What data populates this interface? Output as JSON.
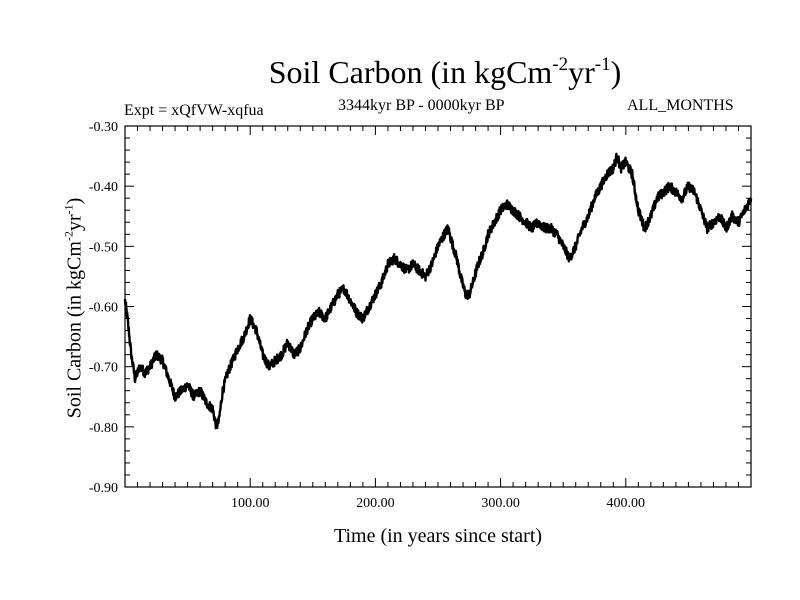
{
  "chart_data": {
    "type": "line",
    "title": {
      "main": "Soil Carbon (in kgCm",
      "exp1": "-2",
      "mid": "yr",
      "exp2": "-1",
      "end": ")"
    },
    "expt": "Expt = xQfVW-xqfua",
    "period": "3344kyr BP - 0000kyr BP",
    "months": "ALL_MONTHS",
    "ylabel": {
      "main": "Soil Carbon (in kgCm",
      "exp1": "-2",
      "mid": "yr",
      "exp2": "-1",
      "end": ")"
    },
    "xlabel": "Time (in years since start)",
    "xlim": [
      0,
      500
    ],
    "ylim": [
      -0.9,
      -0.3
    ],
    "x_ticks": [
      100,
      200,
      300,
      400
    ],
    "x_tick_labels": [
      "100.00",
      "200.00",
      "300.00",
      "400.00"
    ],
    "y_ticks": [
      -0.9,
      -0.8,
      -0.7,
      -0.6,
      -0.5,
      -0.4,
      -0.3
    ],
    "y_tick_labels": [
      "-0.90",
      "-0.80",
      "-0.70",
      "-0.60",
      "-0.50",
      "-0.40",
      "-0.30"
    ],
    "series": [
      {
        "name": "Soil Carbon",
        "color": "#000000",
        "x": [
          0,
          2,
          5,
          8,
          12,
          16,
          20,
          25,
          30,
          35,
          40,
          45,
          50,
          55,
          60,
          65,
          70,
          73,
          75,
          78,
          82,
          86,
          90,
          95,
          100,
          105,
          110,
          115,
          120,
          125,
          130,
          135,
          140,
          145,
          150,
          155,
          160,
          165,
          170,
          175,
          180,
          185,
          190,
          195,
          200,
          205,
          210,
          215,
          220,
          225,
          230,
          235,
          240,
          245,
          250,
          255,
          258,
          262,
          265,
          268,
          272,
          275,
          278,
          282,
          286,
          290,
          295,
          300,
          305,
          310,
          315,
          320,
          325,
          330,
          335,
          340,
          345,
          350,
          355,
          360,
          365,
          370,
          375,
          380,
          385,
          390,
          393,
          396,
          400,
          405,
          410,
          415,
          420,
          425,
          430,
          435,
          440,
          445,
          450,
          455,
          460,
          465,
          470,
          475,
          480,
          485,
          490,
          495,
          500
        ],
        "y": [
          -0.59,
          -0.62,
          -0.68,
          -0.72,
          -0.7,
          -0.71,
          -0.7,
          -0.68,
          -0.69,
          -0.72,
          -0.75,
          -0.74,
          -0.73,
          -0.75,
          -0.74,
          -0.76,
          -0.77,
          -0.8,
          -0.79,
          -0.74,
          -0.71,
          -0.69,
          -0.67,
          -0.65,
          -0.62,
          -0.64,
          -0.68,
          -0.7,
          -0.69,
          -0.68,
          -0.66,
          -0.68,
          -0.67,
          -0.64,
          -0.62,
          -0.61,
          -0.62,
          -0.6,
          -0.58,
          -0.57,
          -0.59,
          -0.61,
          -0.62,
          -0.6,
          -0.58,
          -0.56,
          -0.53,
          -0.52,
          -0.53,
          -0.54,
          -0.53,
          -0.54,
          -0.55,
          -0.53,
          -0.5,
          -0.48,
          -0.47,
          -0.5,
          -0.52,
          -0.55,
          -0.58,
          -0.58,
          -0.56,
          -0.53,
          -0.51,
          -0.48,
          -0.46,
          -0.44,
          -0.43,
          -0.44,
          -0.45,
          -0.46,
          -0.47,
          -0.46,
          -0.47,
          -0.47,
          -0.48,
          -0.5,
          -0.52,
          -0.5,
          -0.47,
          -0.45,
          -0.42,
          -0.4,
          -0.38,
          -0.37,
          -0.35,
          -0.37,
          -0.36,
          -0.38,
          -0.44,
          -0.47,
          -0.45,
          -0.42,
          -0.41,
          -0.4,
          -0.41,
          -0.42,
          -0.4,
          -0.41,
          -0.44,
          -0.47,
          -0.46,
          -0.45,
          -0.47,
          -0.45,
          -0.46,
          -0.44,
          -0.42
        ]
      }
    ]
  }
}
